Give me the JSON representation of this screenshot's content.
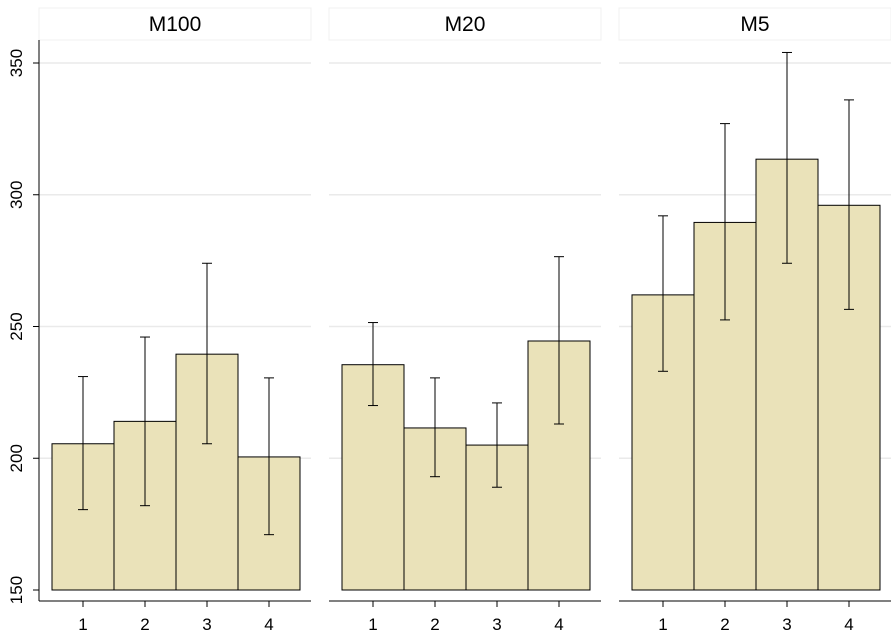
{
  "chart_data": [
    {
      "type": "bar",
      "title": "M100",
      "categories": [
        "1",
        "2",
        "3",
        "4"
      ],
      "values": [
        205.5,
        214,
        239.5,
        200.5
      ],
      "error_low": [
        180.5,
        182,
        205.5,
        171
      ],
      "error_high": [
        231,
        246,
        274,
        230.5
      ],
      "ylim": [
        150,
        360
      ],
      "yticks": [
        "150",
        "200",
        "250",
        "300",
        "350"
      ],
      "grid": true
    },
    {
      "type": "bar",
      "title": "M20",
      "categories": [
        "1",
        "2",
        "3",
        "4"
      ],
      "values": [
        235.5,
        211.5,
        205,
        244.5
      ],
      "error_low": [
        220,
        193,
        189,
        213
      ],
      "error_high": [
        251.5,
        230.5,
        221,
        276.5
      ],
      "ylim": [
        150,
        360
      ],
      "grid": true
    },
    {
      "type": "bar",
      "title": "M5",
      "categories": [
        "1",
        "2",
        "3",
        "4"
      ],
      "values": [
        262,
        289.5,
        313.5,
        296
      ],
      "error_low": [
        233,
        252.5,
        274,
        256.5
      ],
      "error_high": [
        292,
        327,
        354,
        336
      ],
      "ylim": [
        150,
        360
      ],
      "grid": true
    }
  ],
  "colors": {
    "bar_fill": "#eae2b9",
    "bar_stroke": "#000000",
    "grid": "#eaeaea",
    "header_bg": "#ffffff",
    "axis": "#000000"
  }
}
